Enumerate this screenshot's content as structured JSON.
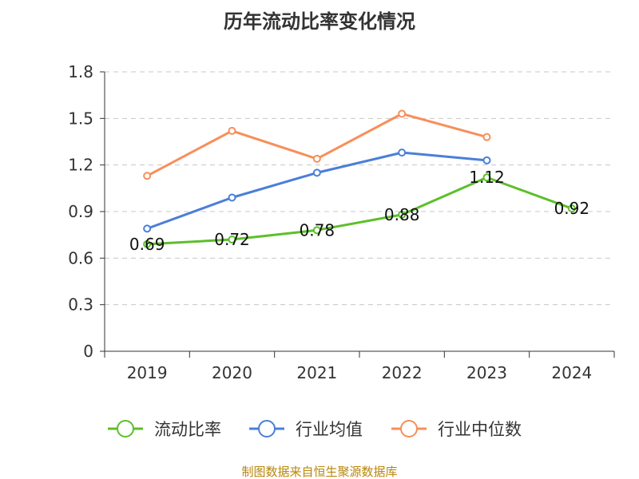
{
  "chart_data": {
    "type": "line",
    "title": "历年流动比率变化情况",
    "categories": [
      "2019",
      "2020",
      "2021",
      "2022",
      "2023",
      "2024"
    ],
    "y_ticks": [
      "0",
      "0.3",
      "0.6",
      "0.9",
      "1.2",
      "1.5",
      "1.8"
    ],
    "ylim": [
      0,
      1.8
    ],
    "grid": "horizontal-dashed",
    "legend_position": "bottom",
    "series": [
      {
        "name": "流动比率",
        "color": "#5cbf2a",
        "values": [
          0.69,
          0.72,
          0.78,
          0.88,
          1.12,
          0.92
        ],
        "data_labels": [
          "0.69",
          "0.72",
          "0.78",
          "0.88",
          "1.12",
          "0.92"
        ]
      },
      {
        "name": "行业均值",
        "color": "#4a7fd8",
        "values": [
          0.79,
          0.99,
          1.15,
          1.28,
          1.23,
          null
        ]
      },
      {
        "name": "行业中位数",
        "color": "#f78f5a",
        "values": [
          1.13,
          1.42,
          1.24,
          1.53,
          1.38,
          null
        ]
      }
    ],
    "source": "制图数据来自恒生聚源数据库"
  }
}
